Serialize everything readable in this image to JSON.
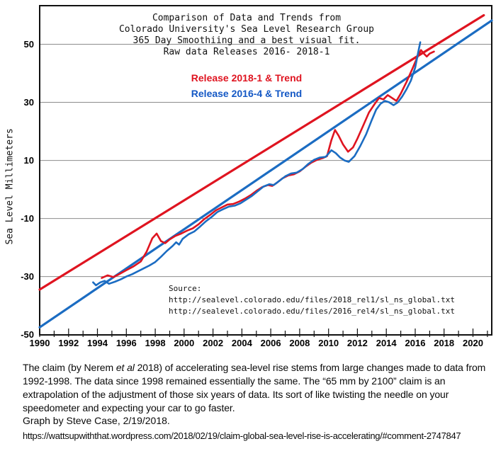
{
  "chart": {
    "title_lines": [
      "Comparison of Data and Trends from",
      "Colorado University's Sea Level Research Group",
      "365 Day Smoothiing and a best visual fit.",
      "Raw data Releases 2016- 2018-1"
    ],
    "legend": [
      {
        "label": "Release 2018-1 & Trend",
        "color": "#df1420"
      },
      {
        "label": "Release 2016-4 & Trend",
        "color": "#1458c5"
      }
    ],
    "y_axis_title": "Sea Level Millimeters",
    "source_lines": [
      "Source:",
      "http://sealevel.colorado.edu/files/2018_rel1/sl_ns_global.txt",
      "http://sealevel.colorado.edu/files/2016_rel4/sl_ns_global.txt"
    ],
    "colors": {
      "red": "#df1420",
      "blue": "#1b6cc2",
      "grid": "#8c8c8c",
      "axis": "#111111"
    }
  },
  "chart_data": {
    "type": "line",
    "title": "Comparison of Data and Trends from Colorado University's Sea Level Research Group, 365 Day Smoothiing and a best visual fit. Raw data Releases 2016- 2018-1",
    "xlabel": "",
    "ylabel": "Sea Level Millimeters",
    "x_range": [
      1990,
      2021.3
    ],
    "y_range": [
      -50.1,
      63.3
    ],
    "x_tick_labels": [
      1990,
      1992,
      1994,
      1996,
      1998,
      2000,
      2002,
      2004,
      2006,
      2008,
      2010,
      2012,
      2014,
      2016,
      2018,
      2020
    ],
    "y_tick_labels": [
      50,
      30,
      10,
      -10,
      -30,
      -50
    ],
    "grid_y": [
      50,
      30,
      10,
      -10,
      -30
    ],
    "grid": "horizontal-only",
    "legend_position": "top-center",
    "series": [
      {
        "name": "Release 2018-1 trend (best visual fit)",
        "kind": "trend",
        "color": "#df1420",
        "width": 3.2,
        "points": [
          [
            1990,
            -34.5
          ],
          [
            2020.75,
            60
          ]
        ]
      },
      {
        "name": "Release 2016-4 trend (best visual fit)",
        "kind": "trend",
        "color": "#1b6cc2",
        "width": 3.2,
        "points": [
          [
            1990,
            -47.5
          ],
          [
            2021.3,
            58.2
          ]
        ]
      },
      {
        "name": "Release 2018-1 data (365 day smoothed)",
        "kind": "data",
        "color": "#df1420",
        "width": 2.6,
        "points": [
          [
            1994.3,
            -30.5
          ],
          [
            1994.7,
            -29.6
          ],
          [
            1995.1,
            -30.2
          ],
          [
            1995.5,
            -29.2
          ],
          [
            1996,
            -27.8
          ],
          [
            1996.5,
            -26.5
          ],
          [
            1997,
            -24.8
          ],
          [
            1997.4,
            -21.5
          ],
          [
            1997.8,
            -16.8
          ],
          [
            1998.1,
            -15.2
          ],
          [
            1998.4,
            -17.8
          ],
          [
            1998.7,
            -18.5
          ],
          [
            1999,
            -17.2
          ],
          [
            1999.4,
            -16
          ],
          [
            1999.8,
            -15.2
          ],
          [
            2000.2,
            -14.2
          ],
          [
            2000.6,
            -13.4
          ],
          [
            2001,
            -12
          ],
          [
            2001.4,
            -10.2
          ],
          [
            2001.8,
            -8.8
          ],
          [
            2002.2,
            -7.2
          ],
          [
            2002.6,
            -6.2
          ],
          [
            2003,
            -5.2
          ],
          [
            2003.4,
            -5
          ],
          [
            2003.8,
            -4.2
          ],
          [
            2004.2,
            -3.2
          ],
          [
            2004.6,
            -2
          ],
          [
            2005,
            -0.5
          ],
          [
            2005.4,
            0.8
          ],
          [
            2005.8,
            1.5
          ],
          [
            2006.1,
            1.2
          ],
          [
            2006.4,
            2.2
          ],
          [
            2006.8,
            3.8
          ],
          [
            2007.2,
            4.8
          ],
          [
            2007.6,
            5.2
          ],
          [
            2008,
            6.2
          ],
          [
            2008.4,
            7.8
          ],
          [
            2008.8,
            9.2
          ],
          [
            2009.2,
            10.2
          ],
          [
            2009.6,
            10.8
          ],
          [
            2009.9,
            11.5
          ],
          [
            2010.2,
            17
          ],
          [
            2010.45,
            20.5
          ],
          [
            2010.7,
            18.5
          ],
          [
            2011,
            15.5
          ],
          [
            2011.35,
            13
          ],
          [
            2011.7,
            14.5
          ],
          [
            2012,
            17.5
          ],
          [
            2012.4,
            22
          ],
          [
            2012.8,
            26.5
          ],
          [
            2013.2,
            29.5
          ],
          [
            2013.5,
            31.5
          ],
          [
            2013.8,
            31
          ],
          [
            2014.1,
            32.5
          ],
          [
            2014.4,
            31.5
          ],
          [
            2014.7,
            30.5
          ],
          [
            2015,
            33
          ],
          [
            2015.4,
            37
          ],
          [
            2015.8,
            41.5
          ],
          [
            2016.1,
            45
          ],
          [
            2016.4,
            48
          ],
          [
            2016.6,
            46.8
          ],
          [
            2016.8,
            45.8
          ],
          [
            2017,
            46.8
          ],
          [
            2017.3,
            47.5
          ]
        ]
      },
      {
        "name": "Release 2016-4 data (365 day smoothed)",
        "kind": "data",
        "color": "#1b6cc2",
        "width": 2.6,
        "points": [
          [
            1993.7,
            -32
          ],
          [
            1993.9,
            -33
          ],
          [
            1994.2,
            -32
          ],
          [
            1994.5,
            -31.5
          ],
          [
            1994.8,
            -32.5
          ],
          [
            1995.2,
            -31.8
          ],
          [
            1995.6,
            -31
          ],
          [
            1996,
            -30
          ],
          [
            1996.4,
            -29.2
          ],
          [
            1996.8,
            -28.2
          ],
          [
            1997.2,
            -27.2
          ],
          [
            1997.6,
            -26.2
          ],
          [
            1998,
            -25
          ],
          [
            1998.4,
            -23.2
          ],
          [
            1998.8,
            -21.2
          ],
          [
            1999.2,
            -19.5
          ],
          [
            1999.45,
            -18.2
          ],
          [
            1999.65,
            -19
          ],
          [
            1999.9,
            -17
          ],
          [
            2000.3,
            -15.5
          ],
          [
            2000.7,
            -14.5
          ],
          [
            2001.1,
            -12.8
          ],
          [
            2001.5,
            -11
          ],
          [
            2001.9,
            -9.5
          ],
          [
            2002.3,
            -7.8
          ],
          [
            2002.7,
            -6.8
          ],
          [
            2003.1,
            -5.9
          ],
          [
            2003.5,
            -5.6
          ],
          [
            2003.9,
            -4.8
          ],
          [
            2004.3,
            -3.5
          ],
          [
            2004.7,
            -2.2
          ],
          [
            2005.1,
            -0.6
          ],
          [
            2005.5,
            1
          ],
          [
            2005.9,
            1.8
          ],
          [
            2006.2,
            1.5
          ],
          [
            2006.6,
            3
          ],
          [
            2007,
            4.5
          ],
          [
            2007.4,
            5.5
          ],
          [
            2007.8,
            5.8
          ],
          [
            2008.2,
            7
          ],
          [
            2008.6,
            8.8
          ],
          [
            2009,
            10.2
          ],
          [
            2009.4,
            11
          ],
          [
            2009.8,
            11.2
          ],
          [
            2010.2,
            13.5
          ],
          [
            2010.5,
            12.5
          ],
          [
            2010.8,
            11
          ],
          [
            2011.1,
            10
          ],
          [
            2011.4,
            9.5
          ],
          [
            2011.8,
            11.5
          ],
          [
            2012.2,
            15
          ],
          [
            2012.6,
            19
          ],
          [
            2013,
            24
          ],
          [
            2013.3,
            27.5
          ],
          [
            2013.6,
            29.5
          ],
          [
            2013.9,
            30.5
          ],
          [
            2014.2,
            30
          ],
          [
            2014.5,
            29
          ],
          [
            2014.8,
            30
          ],
          [
            2015.1,
            32
          ],
          [
            2015.4,
            34.5
          ],
          [
            2015.7,
            37.5
          ],
          [
            2016,
            42
          ],
          [
            2016.2,
            47
          ],
          [
            2016.35,
            50.7
          ]
        ]
      }
    ]
  },
  "caption": {
    "part1": "The claim (by Nerem ",
    "italic": "et al",
    "part2": " 2018) of accelerating sea-level rise stems from large changes made to data from 1992-1998. The data since 1998 remained essentially the same. The “65 mm by 2100” claim is an extrapolation of the adjustment of those six years of data. Its sort of like twisting the needle on your speedometer and expecting your car to go faster."
  },
  "credit": "Graph by Steve Case, 2/19/2018.",
  "link": "https://wattsupwiththat.wordpress.com/2018/02/19/claim-global-sea-level-rise-is-accelerating/#comment-2747847"
}
